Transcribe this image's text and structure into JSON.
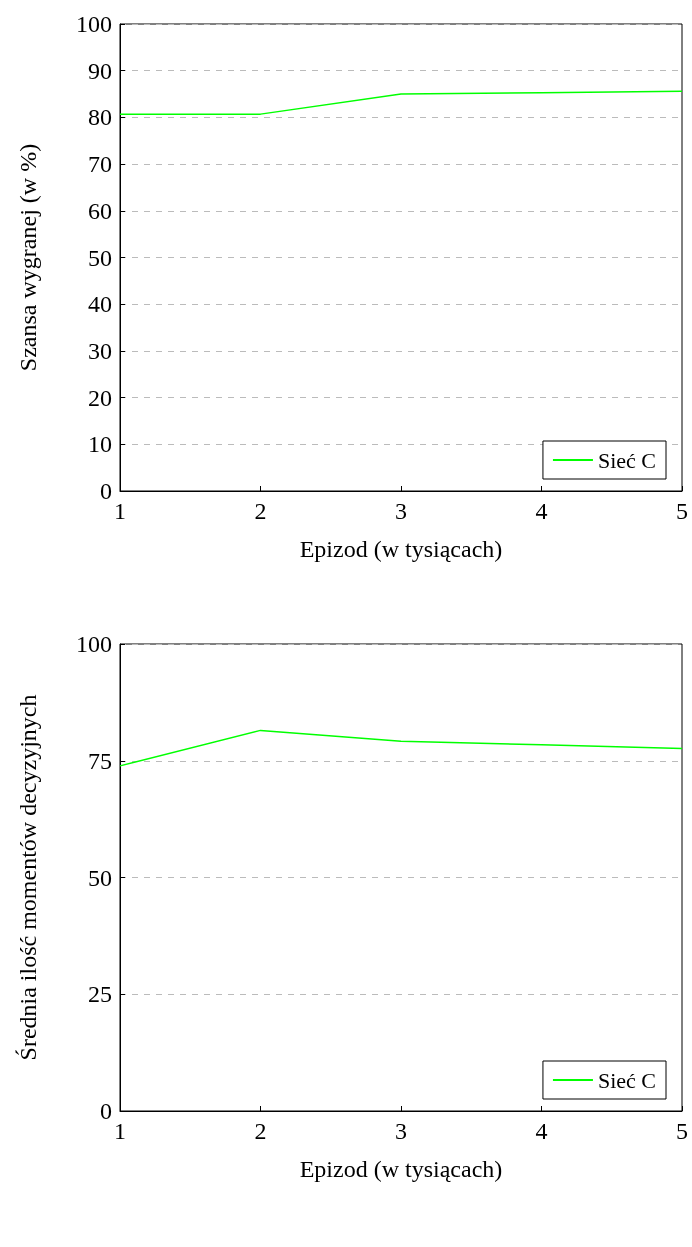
{
  "chart_data": [
    {
      "type": "line",
      "xlabel": "Epizod (w tysiącach)",
      "ylabel": "Szansa wygranej (w %)",
      "x": [
        1,
        2,
        3,
        4,
        5
      ],
      "series": [
        {
          "name": "Sieć C",
          "color": "#00ff00",
          "values": [
            80.7,
            80.7,
            85.0,
            85.3,
            85.6
          ]
        }
      ],
      "xlim": [
        1,
        5
      ],
      "xticks": [
        1,
        2,
        3,
        4,
        5
      ],
      "ylim": [
        0,
        100
      ],
      "yticks": [
        0,
        10,
        20,
        30,
        40,
        50,
        60,
        70,
        80,
        90,
        100
      ],
      "grid": "y",
      "legend": "bottom right",
      "marker": "none",
      "line_style": "solid"
    },
    {
      "type": "line",
      "xlabel": "Epizod (w tysiącach)",
      "ylabel": "Średnia ilość momentów decyzyjnych",
      "x": [
        1,
        2,
        3,
        4,
        5
      ],
      "series": [
        {
          "name": "Sieć C",
          "color": "#00ff00",
          "values": [
            73.9,
            81.5,
            79.2,
            78.4,
            77.6
          ]
        }
      ],
      "xlim": [
        1,
        5
      ],
      "xticks": [
        1,
        2,
        3,
        4,
        5
      ],
      "ylim": [
        0,
        100
      ],
      "yticks": [
        0,
        25,
        50,
        75,
        100
      ],
      "grid": "y",
      "legend": "bottom right",
      "marker": "none",
      "line_style": "solid"
    }
  ]
}
